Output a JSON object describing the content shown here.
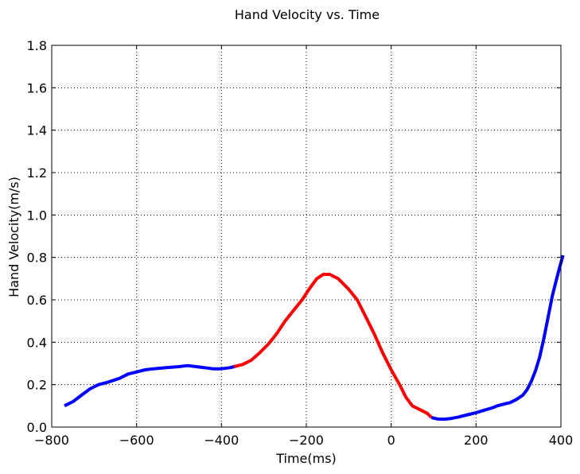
{
  "chart_data": {
    "type": "line",
    "title": "Hand Velocity vs. Time",
    "xlabel": "Time(ms)",
    "ylabel": "Hand Velocity(m/s)",
    "xlim": [
      -800,
      400
    ],
    "ylim": [
      0.0,
      1.8
    ],
    "x_ticks": [
      -800,
      -600,
      -400,
      -200,
      0,
      200,
      400
    ],
    "x_tick_labels": [
      "−800",
      "−600",
      "−400",
      "−200",
      "0",
      "200",
      "400"
    ],
    "y_ticks": [
      0.0,
      0.2,
      0.4,
      0.6,
      0.8,
      1.0,
      1.2,
      1.4,
      1.6,
      1.8
    ],
    "y_tick_labels": [
      "0.0",
      "0.2",
      "0.4",
      "0.6",
      "0.8",
      "1.0",
      "1.2",
      "1.4",
      "1.6",
      "1.8"
    ],
    "grid": true,
    "series": [
      {
        "color": "#0000ff",
        "points": [
          [
            -770,
            0.1
          ],
          [
            -750,
            0.12
          ],
          [
            -730,
            0.15
          ],
          [
            -710,
            0.18
          ],
          [
            -690,
            0.2
          ],
          [
            -670,
            0.21
          ],
          [
            -640,
            0.23
          ],
          [
            -620,
            0.25
          ],
          [
            -600,
            0.26
          ],
          [
            -580,
            0.27
          ],
          [
            -560,
            0.275
          ],
          [
            -530,
            0.28
          ],
          [
            -500,
            0.285
          ],
          [
            -480,
            0.29
          ],
          [
            -460,
            0.285
          ],
          [
            -440,
            0.28
          ],
          [
            -420,
            0.275
          ],
          [
            -400,
            0.275
          ],
          [
            -380,
            0.28
          ],
          [
            -370,
            0.285
          ]
        ]
      },
      {
        "color": "#ff0000",
        "points": [
          [
            -370,
            0.285
          ],
          [
            -350,
            0.295
          ],
          [
            -330,
            0.315
          ],
          [
            -310,
            0.35
          ],
          [
            -290,
            0.39
          ],
          [
            -270,
            0.44
          ],
          [
            -250,
            0.5
          ],
          [
            -230,
            0.55
          ],
          [
            -210,
            0.6
          ],
          [
            -190,
            0.66
          ],
          [
            -175,
            0.7
          ],
          [
            -160,
            0.72
          ],
          [
            -145,
            0.72
          ],
          [
            -125,
            0.7
          ],
          [
            -100,
            0.65
          ],
          [
            -80,
            0.6
          ],
          [
            -60,
            0.52
          ],
          [
            -40,
            0.44
          ],
          [
            -20,
            0.35
          ],
          [
            0,
            0.27
          ],
          [
            20,
            0.2
          ],
          [
            35,
            0.14
          ],
          [
            50,
            0.1
          ],
          [
            70,
            0.08
          ],
          [
            85,
            0.065
          ],
          [
            95,
            0.045
          ]
        ]
      },
      {
        "color": "#0000ff",
        "points": [
          [
            95,
            0.045
          ],
          [
            110,
            0.038
          ],
          [
            125,
            0.037
          ],
          [
            140,
            0.04
          ],
          [
            160,
            0.048
          ],
          [
            180,
            0.058
          ],
          [
            200,
            0.068
          ],
          [
            220,
            0.08
          ],
          [
            240,
            0.092
          ],
          [
            250,
            0.1
          ],
          [
            265,
            0.108
          ],
          [
            280,
            0.115
          ],
          [
            295,
            0.13
          ],
          [
            310,
            0.15
          ],
          [
            320,
            0.175
          ],
          [
            330,
            0.215
          ],
          [
            340,
            0.265
          ],
          [
            350,
            0.33
          ],
          [
            360,
            0.42
          ],
          [
            370,
            0.52
          ],
          [
            380,
            0.62
          ],
          [
            390,
            0.7
          ],
          [
            398,
            0.76
          ],
          [
            405,
            0.81
          ]
        ]
      }
    ]
  }
}
